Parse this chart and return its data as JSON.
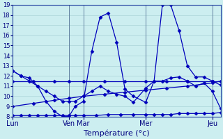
{
  "xlabel": "Température (°c)",
  "ylim": [
    8,
    19
  ],
  "background_color": "#cceef0",
  "grid_color": "#aad4d8",
  "line_color": "#0000bb",
  "day_labels": [
    "Lun",
    "Ven",
    "Mar",
    "Mer",
    "Jeu"
  ],
  "day_positions": [
    0,
    27,
    34,
    64,
    96
  ],
  "x_max": 100,
  "series": [
    {
      "x": [
        0,
        4,
        8,
        12,
        16,
        20,
        24,
        27,
        30,
        34,
        38,
        42,
        46,
        50,
        54,
        58,
        64,
        68,
        72,
        76,
        80,
        84,
        88,
        92,
        96,
        100
      ],
      "y": [
        12.5,
        12.0,
        11.8,
        11.0,
        9.5,
        8.5,
        8.0,
        8.0,
        9.0,
        9.5,
        14.4,
        17.8,
        18.2,
        15.3,
        10.7,
        10.0,
        9.4,
        11.5,
        19.0,
        19.0,
        16.5,
        13.0,
        11.9,
        11.9,
        11.5,
        11.1
      ]
    },
    {
      "x": [
        0,
        4,
        8,
        12,
        16,
        20,
        24,
        27,
        30,
        34,
        40,
        46,
        52,
        58,
        64,
        68,
        72,
        76,
        80,
        84,
        88,
        92,
        96,
        100
      ],
      "y": [
        8.1,
        8.1,
        8.1,
        8.1,
        8.1,
        8.1,
        8.1,
        8.1,
        8.1,
        8.1,
        8.1,
        8.2,
        8.2,
        8.2,
        8.2,
        8.2,
        8.2,
        8.2,
        8.3,
        8.3,
        8.3,
        8.3,
        8.3,
        8.4
      ]
    },
    {
      "x": [
        0,
        10,
        20,
        27,
        34,
        44,
        54,
        64,
        74,
        84,
        96,
        100
      ],
      "y": [
        9.0,
        9.3,
        9.6,
        9.8,
        10.0,
        10.2,
        10.4,
        10.6,
        10.8,
        11.0,
        11.3,
        11.5
      ]
    },
    {
      "x": [
        0,
        10,
        20,
        27,
        34,
        44,
        54,
        64,
        74,
        84,
        96,
        100
      ],
      "y": [
        11.5,
        11.5,
        11.5,
        11.5,
        11.5,
        11.5,
        11.5,
        11.5,
        11.5,
        11.5,
        11.5,
        11.5
      ]
    },
    {
      "x": [
        0,
        4,
        8,
        12,
        16,
        20,
        24,
        27,
        30,
        34,
        38,
        42,
        46,
        50,
        54,
        58,
        64,
        68,
        72,
        76,
        80,
        84,
        88,
        92,
        96,
        100
      ],
      "y": [
        12.5,
        12.0,
        11.5,
        11.0,
        10.5,
        10.0,
        9.5,
        9.5,
        9.5,
        10.0,
        10.5,
        11.0,
        10.5,
        10.2,
        10.0,
        9.4,
        10.8,
        11.5,
        11.5,
        11.8,
        11.9,
        11.5,
        11.0,
        11.3,
        10.5,
        8.8
      ]
    }
  ],
  "marker": "D",
  "markersize": 2.5,
  "linewidth": 0.9
}
